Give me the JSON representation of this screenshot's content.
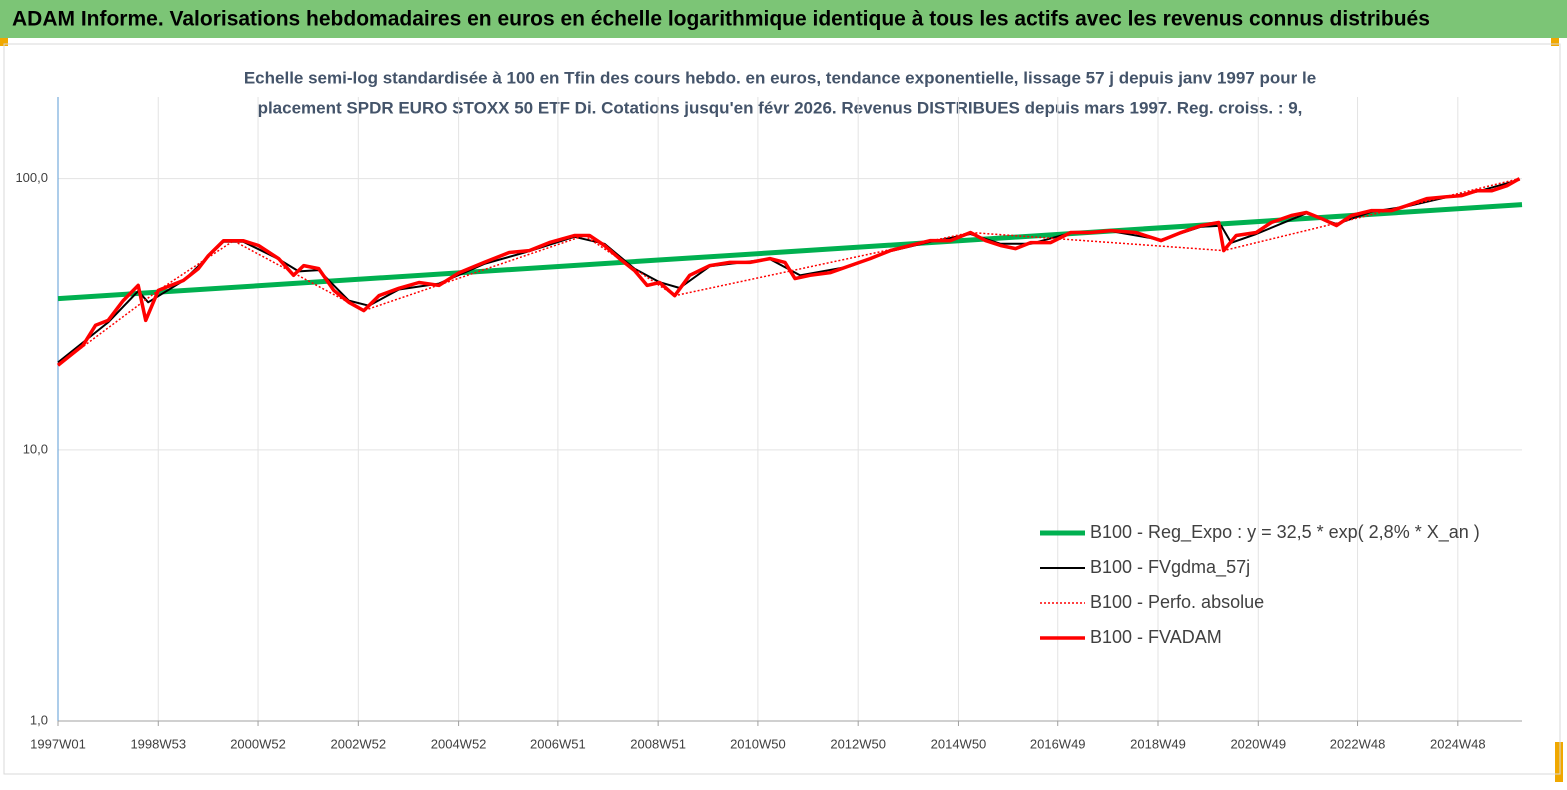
{
  "chart_data": {
    "type": "line",
    "title": "ADAM Informe. Valorisations hebdomadaires en euros en échelle logarithmique identique à tous les actifs avec les revenus connus distribués",
    "subtitle": [
      "Echelle semi-log standardisée à 100 en Tfin des cours hebdo. en euros, tendance exponentielle, lissage 57 j depuis janv 1997 pour le",
      "placement SPDR EURO STOXX 50 ETF Di. Cotations jusqu'en févr 2026. Revenus DISTRIBUES depuis mars 1997. Reg. croiss. : 9,"
    ],
    "log_scale_y": true,
    "grid": true,
    "legend": "lower right",
    "xlim": [
      1997.0,
      2026.2
    ],
    "ylim": [
      1,
      200
    ],
    "yticks": [
      {
        "value": 1,
        "label": "1,0"
      },
      {
        "value": 10,
        "label": "10,0"
      },
      {
        "value": 100,
        "label": "100,0"
      }
    ],
    "xticks": [
      {
        "value": 1997.0,
        "label": "1997W01"
      },
      {
        "value": 1999.0,
        "label": "1998W53"
      },
      {
        "value": 2000.99,
        "label": "2000W52"
      },
      {
        "value": 2002.99,
        "label": "2002W52"
      },
      {
        "value": 2004.99,
        "label": "2004W52"
      },
      {
        "value": 2006.97,
        "label": "2006W51"
      },
      {
        "value": 2008.97,
        "label": "2008W51"
      },
      {
        "value": 2010.96,
        "label": "2010W50"
      },
      {
        "value": 2012.96,
        "label": "2012W50"
      },
      {
        "value": 2014.96,
        "label": "2014W50"
      },
      {
        "value": 2016.94,
        "label": "2016W49"
      },
      {
        "value": 2018.94,
        "label": "2018W49"
      },
      {
        "value": 2020.94,
        "label": "2020W49"
      },
      {
        "value": 2022.92,
        "label": "2022W48"
      },
      {
        "value": 2024.92,
        "label": "2024W48"
      }
    ],
    "series": [
      {
        "name": "B100 - Reg_Expo : y = 32,5 *  exp( 2,8% *  X_an )",
        "color": "#00b050",
        "width": 5,
        "dash": "solid",
        "x": [
          1997.0,
          2026.2
        ],
        "values": [
          36.1,
          80.2
        ]
      },
      {
        "name": "B100 - FVgdma_57j",
        "color": "#000000",
        "width": 2,
        "dash": "solid",
        "x": [
          1997.0,
          1998.0,
          1998.6,
          1998.8,
          1999.5,
          2000.3,
          2000.7,
          2001.4,
          2001.8,
          2002.2,
          2002.8,
          2003.2,
          2003.8,
          2004.6,
          2005.5,
          2006.4,
          2007.3,
          2007.9,
          2008.5,
          2009.0,
          2009.4,
          2010.0,
          2011.2,
          2011.8,
          2012.8,
          2013.6,
          2014.4,
          2015.2,
          2015.8,
          2016.4,
          2017.2,
          2018.0,
          2019.0,
          2019.8,
          2020.2,
          2020.4,
          2020.9,
          2021.9,
          2022.5,
          2023.2,
          2023.9,
          2024.7,
          2025.3,
          2026.15
        ],
        "values": [
          21.0,
          29.5,
          38.5,
          35.0,
          42.0,
          58.5,
          58.5,
          50.5,
          45.5,
          46.0,
          35.5,
          34.0,
          39.0,
          41.0,
          48.5,
          54.0,
          61.0,
          57.5,
          46.5,
          41.5,
          39.5,
          47.5,
          50.5,
          44.0,
          47.5,
          54.0,
          58.5,
          62.5,
          57.5,
          57.5,
          63.0,
          64.0,
          59.5,
          66.5,
          67.0,
          58.0,
          62.5,
          74.5,
          68.0,
          75.5,
          79.0,
          85.5,
          89.5,
          99.0
        ]
      },
      {
        "name": "B100 - Perfo. absolue",
        "color": "#ff0000",
        "width": 1.5,
        "dash": "dotted",
        "x": [
          1997.0,
          1999.0,
          2000.5,
          2003.1,
          2007.5,
          2009.3,
          2015.2,
          2020.25,
          2026.15
        ],
        "values": [
          20.5,
          38.7,
          59.0,
          32.6,
          61.7,
          37.0,
          63.3,
          54.3,
          100
        ]
      },
      {
        "name": "B100 - FVADAM",
        "color": "#ff0000",
        "width": 3.5,
        "dash": "solid",
        "x": [
          1997.0,
          1997.5,
          1997.75,
          1998.0,
          1998.3,
          1998.6,
          1998.75,
          1999.0,
          1999.5,
          1999.8,
          2000.0,
          2000.3,
          2000.7,
          2001.0,
          2001.4,
          2001.7,
          2001.9,
          2002.2,
          2002.5,
          2002.8,
          2003.1,
          2003.4,
          2003.8,
          2004.2,
          2004.6,
          2005.0,
          2005.5,
          2006.0,
          2006.4,
          2006.8,
          2007.3,
          2007.6,
          2007.9,
          2008.2,
          2008.5,
          2008.75,
          2009.0,
          2009.3,
          2009.6,
          2010.0,
          2010.4,
          2010.8,
          2011.2,
          2011.5,
          2011.7,
          2012.0,
          2012.4,
          2012.8,
          2013.2,
          2013.6,
          2014.0,
          2014.4,
          2014.8,
          2015.2,
          2015.5,
          2015.8,
          2016.1,
          2016.4,
          2016.8,
          2017.2,
          2017.6,
          2018.0,
          2018.5,
          2019.0,
          2019.4,
          2019.8,
          2020.15,
          2020.25,
          2020.5,
          2020.9,
          2021.2,
          2021.6,
          2021.9,
          2022.2,
          2022.5,
          2022.8,
          2023.2,
          2023.6,
          2023.9,
          2024.3,
          2024.7,
          2025.0,
          2025.3,
          2025.6,
          2025.9,
          2026.15
        ],
        "values": [
          20.5,
          24.3,
          28.8,
          30.0,
          35.5,
          40.4,
          30.0,
          38.7,
          42.1,
          46.6,
          52.0,
          59.0,
          59.0,
          56.7,
          50.7,
          44.0,
          47.8,
          46.6,
          38.7,
          35.0,
          32.6,
          37.0,
          39.4,
          41.4,
          40.4,
          45.0,
          49.1,
          53.4,
          54.3,
          58.1,
          61.7,
          61.7,
          56.7,
          50.7,
          45.8,
          40.4,
          41.4,
          37.0,
          44.0,
          47.8,
          49.1,
          49.1,
          50.7,
          49.1,
          42.8,
          44.0,
          45.0,
          47.8,
          50.7,
          54.3,
          56.7,
          59.1,
          59.1,
          63.3,
          59.1,
          56.7,
          55.2,
          58.1,
          58.1,
          63.3,
          63.3,
          64.3,
          63.3,
          59.1,
          63.3,
          67.1,
          68.9,
          54.3,
          61.7,
          63.3,
          68.9,
          73.1,
          75.0,
          71.2,
          67.1,
          73.1,
          76.2,
          76.2,
          79.5,
          84.4,
          85.8,
          86.6,
          90.3,
          90.3,
          94.2,
          100
        ]
      }
    ]
  }
}
